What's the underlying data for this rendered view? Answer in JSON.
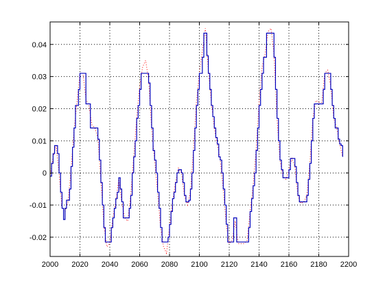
{
  "chart_data": {
    "type": "line",
    "title": "",
    "xlabel": "",
    "ylabel": "",
    "xlim": [
      2000,
      2200
    ],
    "ylim": [
      -0.026,
      0.047
    ],
    "grid": true,
    "x_ticks": [
      2000,
      2020,
      2040,
      2060,
      2080,
      2100,
      2120,
      2140,
      2160,
      2180,
      2200
    ],
    "y_ticks": [
      -0.02,
      -0.01,
      0,
      0.01,
      0.02,
      0.03,
      0.04
    ],
    "x_tick_labels": [
      "2000",
      "2020",
      "2040",
      "2060",
      "2080",
      "2100",
      "2120",
      "2140",
      "2160",
      "2180",
      "2200"
    ],
    "y_tick_labels": [
      "-0.02",
      "-0.01",
      "0",
      "0.01",
      "0.02",
      "0.03",
      "0.04"
    ],
    "series": [
      {
        "style": "solid-step",
        "color": "#0000bb",
        "points": [
          [
            2000,
            -0.001
          ],
          [
            2001,
            0.003
          ],
          [
            2002,
            0.006
          ],
          [
            2003,
            0.0085
          ],
          [
            2004,
            0.0085
          ],
          [
            2005,
            0.006
          ],
          [
            2006,
            0.0
          ],
          [
            2007,
            -0.006
          ],
          [
            2008,
            -0.011
          ],
          [
            2009,
            -0.0145
          ],
          [
            2010,
            -0.011
          ],
          [
            2011,
            -0.0085
          ],
          [
            2012,
            -0.0085
          ],
          [
            2013,
            -0.005
          ],
          [
            2014,
            0.002
          ],
          [
            2015,
            0.008
          ],
          [
            2016,
            0.014
          ],
          [
            2017,
            0.021
          ],
          [
            2018,
            0.021
          ],
          [
            2019,
            0.026
          ],
          [
            2020,
            0.031
          ],
          [
            2021,
            0.031
          ],
          [
            2022,
            0.031
          ],
          [
            2023,
            0.031
          ],
          [
            2024,
            0.0215
          ],
          [
            2025,
            0.0215
          ],
          [
            2026,
            0.0215
          ],
          [
            2027,
            0.014
          ],
          [
            2028,
            0.014
          ],
          [
            2029,
            0.014
          ],
          [
            2030,
            0.014
          ],
          [
            2031,
            0.014
          ],
          [
            2032,
            0.0105
          ],
          [
            2033,
            0.004
          ],
          [
            2034,
            -0.003
          ],
          [
            2035,
            -0.01
          ],
          [
            2036,
            -0.017
          ],
          [
            2037,
            -0.0215
          ],
          [
            2038,
            -0.0215
          ],
          [
            2039,
            -0.0215
          ],
          [
            2040,
            -0.0215
          ],
          [
            2041,
            -0.017
          ],
          [
            2042,
            -0.014
          ],
          [
            2043,
            -0.011
          ],
          [
            2044,
            -0.008
          ],
          [
            2045,
            -0.006
          ],
          [
            2046,
            -0.0015
          ],
          [
            2047,
            -0.005
          ],
          [
            2048,
            -0.009
          ],
          [
            2049,
            -0.014
          ],
          [
            2050,
            -0.014
          ],
          [
            2051,
            -0.014
          ],
          [
            2052,
            -0.014
          ],
          [
            2053,
            -0.011
          ],
          [
            2054,
            -0.007
          ],
          [
            2055,
            0.0
          ],
          [
            2056,
            0.005
          ],
          [
            2057,
            0.01
          ],
          [
            2058,
            0.017
          ],
          [
            2059,
            0.021
          ],
          [
            2060,
            0.026
          ],
          [
            2061,
            0.031
          ],
          [
            2062,
            0.031
          ],
          [
            2063,
            0.031
          ],
          [
            2064,
            0.031
          ],
          [
            2065,
            0.031
          ],
          [
            2066,
            0.028
          ],
          [
            2067,
            0.021
          ],
          [
            2068,
            0.014
          ],
          [
            2069,
            0.007
          ],
          [
            2070,
            0.004
          ],
          [
            2071,
            0.0
          ],
          [
            2072,
            -0.006
          ],
          [
            2073,
            -0.011
          ],
          [
            2074,
            -0.017
          ],
          [
            2075,
            -0.0215
          ],
          [
            2076,
            -0.0215
          ],
          [
            2077,
            -0.0215
          ],
          [
            2078,
            -0.0215
          ],
          [
            2079,
            -0.02
          ],
          [
            2080,
            -0.016
          ],
          [
            2081,
            -0.012
          ],
          [
            2082,
            -0.008
          ],
          [
            2083,
            -0.006
          ],
          [
            2084,
            -0.003
          ],
          [
            2085,
            0.0
          ],
          [
            2086,
            0.001
          ],
          [
            2087,
            0.001
          ],
          [
            2088,
            0.0
          ],
          [
            2089,
            -0.003
          ],
          [
            2090,
            -0.007
          ],
          [
            2091,
            -0.009
          ],
          [
            2092,
            -0.009
          ],
          [
            2093,
            -0.0085
          ],
          [
            2094,
            -0.005
          ],
          [
            2095,
            0.0
          ],
          [
            2096,
            0.007
          ],
          [
            2097,
            0.014
          ],
          [
            2098,
            0.021
          ],
          [
            2099,
            0.026
          ],
          [
            2100,
            0.031
          ],
          [
            2101,
            0.031
          ],
          [
            2102,
            0.036
          ],
          [
            2103,
            0.0435
          ],
          [
            2104,
            0.0435
          ],
          [
            2105,
            0.0365
          ],
          [
            2106,
            0.031
          ],
          [
            2107,
            0.026
          ],
          [
            2108,
            0.021
          ],
          [
            2109,
            0.0175
          ],
          [
            2110,
            0.014
          ],
          [
            2111,
            0.011
          ],
          [
            2112,
            0.009
          ],
          [
            2113,
            0.005
          ],
          [
            2114,
            0.004
          ],
          [
            2115,
            0.0
          ],
          [
            2116,
            -0.005
          ],
          [
            2117,
            -0.01
          ],
          [
            2118,
            -0.016
          ],
          [
            2119,
            -0.0215
          ],
          [
            2120,
            -0.0215
          ],
          [
            2121,
            -0.0215
          ],
          [
            2122,
            -0.0215
          ],
          [
            2123,
            -0.014
          ],
          [
            2124,
            -0.014
          ],
          [
            2125,
            -0.0215
          ],
          [
            2126,
            -0.0215
          ],
          [
            2127,
            -0.0215
          ],
          [
            2128,
            -0.0215
          ],
          [
            2129,
            -0.0215
          ],
          [
            2130,
            -0.0215
          ],
          [
            2131,
            -0.0215
          ],
          [
            2132,
            -0.0215
          ],
          [
            2133,
            -0.017
          ],
          [
            2134,
            -0.012
          ],
          [
            2135,
            -0.008
          ],
          [
            2136,
            -0.004
          ],
          [
            2137,
            0.0
          ],
          [
            2138,
            0.007
          ],
          [
            2139,
            0.014
          ],
          [
            2140,
            0.021
          ],
          [
            2141,
            0.026
          ],
          [
            2142,
            0.031
          ],
          [
            2143,
            0.036
          ],
          [
            2144,
            0.036
          ],
          [
            2145,
            0.0435
          ],
          [
            2146,
            0.0435
          ],
          [
            2147,
            0.0435
          ],
          [
            2148,
            0.0435
          ],
          [
            2149,
            0.0435
          ],
          [
            2150,
            0.036
          ],
          [
            2151,
            0.026
          ],
          [
            2152,
            0.017
          ],
          [
            2153,
            0.01
          ],
          [
            2154,
            0.004
          ],
          [
            2155,
            0.001
          ],
          [
            2156,
            -0.0015
          ],
          [
            2157,
            -0.0015
          ],
          [
            2158,
            -0.0015
          ],
          [
            2159,
            -0.0015
          ],
          [
            2160,
            0.001
          ],
          [
            2161,
            0.0045
          ],
          [
            2162,
            0.0045
          ],
          [
            2163,
            0.0045
          ],
          [
            2164,
            0.002
          ],
          [
            2165,
            -0.003
          ],
          [
            2166,
            -0.007
          ],
          [
            2167,
            -0.009
          ],
          [
            2168,
            -0.009
          ],
          [
            2169,
            -0.009
          ],
          [
            2170,
            -0.009
          ],
          [
            2171,
            -0.009
          ],
          [
            2172,
            -0.007
          ],
          [
            2173,
            -0.002
          ],
          [
            2174,
            0.003
          ],
          [
            2175,
            0.01
          ],
          [
            2176,
            0.017
          ],
          [
            2177,
            0.0215
          ],
          [
            2178,
            0.0215
          ],
          [
            2179,
            0.0215
          ],
          [
            2180,
            0.0215
          ],
          [
            2181,
            0.0215
          ],
          [
            2182,
            0.0215
          ],
          [
            2183,
            0.026
          ],
          [
            2184,
            0.031
          ],
          [
            2185,
            0.031
          ],
          [
            2186,
            0.031
          ],
          [
            2187,
            0.031
          ],
          [
            2188,
            0.026
          ],
          [
            2189,
            0.021
          ],
          [
            2190,
            0.017
          ],
          [
            2191,
            0.014
          ],
          [
            2192,
            0.014
          ],
          [
            2193,
            0.0105
          ],
          [
            2194,
            0.009
          ],
          [
            2195,
            0.0085
          ],
          [
            2196,
            0.005
          ]
        ]
      },
      {
        "style": "dotted",
        "color": "#ff0000",
        "points": [
          [
            2000,
            -0.001
          ],
          [
            2002,
            0.005
          ],
          [
            2004,
            0.0085
          ],
          [
            2006,
            0.0
          ],
          [
            2008,
            -0.011
          ],
          [
            2010,
            -0.012
          ],
          [
            2012,
            -0.009
          ],
          [
            2014,
            0.001
          ],
          [
            2016,
            0.013
          ],
          [
            2018,
            0.022
          ],
          [
            2020,
            0.031
          ],
          [
            2022,
            0.031
          ],
          [
            2024,
            0.023
          ],
          [
            2026,
            0.021
          ],
          [
            2028,
            0.015
          ],
          [
            2030,
            0.014
          ],
          [
            2032,
            0.011
          ],
          [
            2034,
            -0.002
          ],
          [
            2036,
            -0.016
          ],
          [
            2038,
            -0.023
          ],
          [
            2040,
            -0.022
          ],
          [
            2042,
            -0.014
          ],
          [
            2044,
            -0.009
          ],
          [
            2046,
            -0.002
          ],
          [
            2048,
            -0.009
          ],
          [
            2050,
            -0.014
          ],
          [
            2052,
            -0.015
          ],
          [
            2054,
            -0.007
          ],
          [
            2056,
            0.005
          ],
          [
            2058,
            0.017
          ],
          [
            2060,
            0.027
          ],
          [
            2062,
            0.033
          ],
          [
            2064,
            0.035
          ],
          [
            2066,
            0.029
          ],
          [
            2068,
            0.014
          ],
          [
            2070,
            0.004
          ],
          [
            2072,
            -0.006
          ],
          [
            2074,
            -0.017
          ],
          [
            2076,
            -0.023
          ],
          [
            2078,
            -0.025
          ],
          [
            2080,
            -0.017
          ],
          [
            2082,
            -0.009
          ],
          [
            2084,
            -0.003
          ],
          [
            2086,
            0.0015
          ],
          [
            2088,
            0.0
          ],
          [
            2090,
            -0.007
          ],
          [
            2092,
            -0.01
          ],
          [
            2094,
            -0.006
          ],
          [
            2096,
            0.007
          ],
          [
            2098,
            0.022
          ],
          [
            2100,
            0.031
          ],
          [
            2102,
            0.038
          ],
          [
            2104,
            0.045
          ],
          [
            2106,
            0.032
          ],
          [
            2108,
            0.022
          ],
          [
            2110,
            0.014
          ],
          [
            2112,
            0.009
          ],
          [
            2114,
            0.004
          ],
          [
            2116,
            -0.005
          ],
          [
            2118,
            -0.016
          ],
          [
            2120,
            -0.022
          ],
          [
            2122,
            -0.021
          ],
          [
            2124,
            -0.015
          ],
          [
            2126,
            -0.022
          ],
          [
            2128,
            -0.022
          ],
          [
            2130,
            -0.022
          ],
          [
            2132,
            -0.021
          ],
          [
            2134,
            -0.012
          ],
          [
            2136,
            -0.004
          ],
          [
            2138,
            0.007
          ],
          [
            2140,
            0.022
          ],
          [
            2142,
            0.033
          ],
          [
            2144,
            0.037
          ],
          [
            2146,
            0.044
          ],
          [
            2148,
            0.045
          ],
          [
            2150,
            0.037
          ],
          [
            2152,
            0.017
          ],
          [
            2154,
            0.004
          ],
          [
            2156,
            -0.001
          ],
          [
            2158,
            -0.002
          ],
          [
            2160,
            0.001
          ],
          [
            2162,
            0.0045
          ],
          [
            2164,
            0.002
          ],
          [
            2166,
            -0.007
          ],
          [
            2168,
            -0.0095
          ],
          [
            2170,
            -0.009
          ],
          [
            2172,
            -0.007
          ],
          [
            2174,
            0.003
          ],
          [
            2176,
            0.017
          ],
          [
            2178,
            0.0225
          ],
          [
            2180,
            0.022
          ],
          [
            2182,
            0.022
          ],
          [
            2184,
            0.031
          ],
          [
            2186,
            0.032
          ],
          [
            2188,
            0.027
          ],
          [
            2190,
            0.017
          ],
          [
            2192,
            0.014
          ],
          [
            2194,
            0.009
          ],
          [
            2196,
            0.005
          ]
        ]
      }
    ]
  }
}
